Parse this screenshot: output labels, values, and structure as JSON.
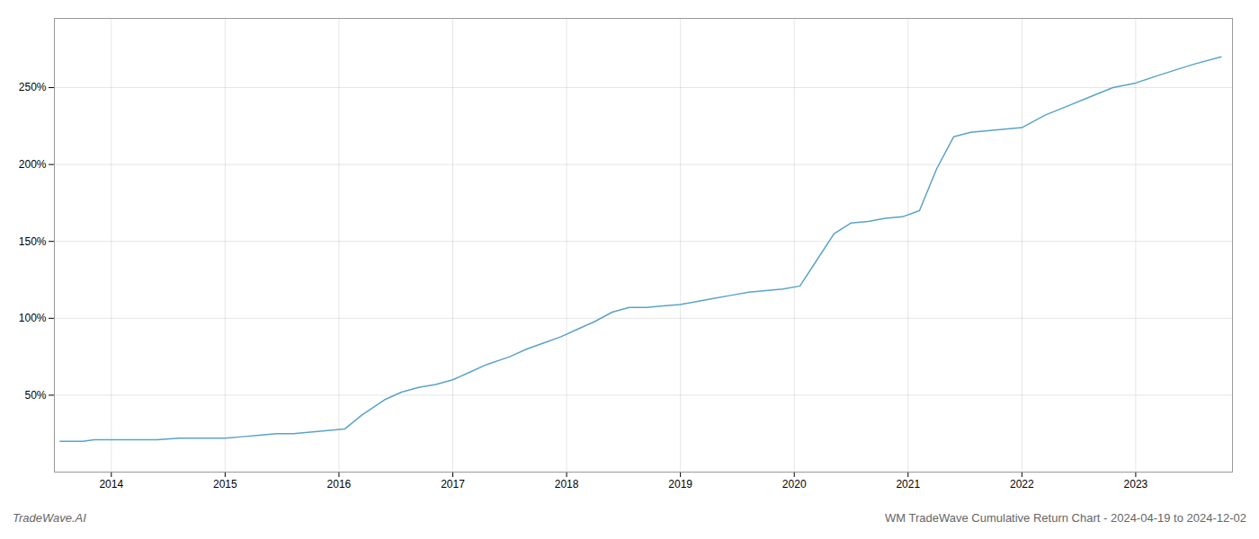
{
  "chart_data": {
    "type": "line",
    "title": "WM TradeWave Cumulative Return Chart - 2024-04-19 to 2024-12-02",
    "annotations": [
      "TradeWave.AI"
    ],
    "color": "#5ba3c9",
    "grid": true,
    "x": [
      2013.55,
      2013.65,
      2013.75,
      2013.85,
      2013.95,
      2014.05,
      2014.2,
      2014.4,
      2014.6,
      2014.8,
      2015.0,
      2015.15,
      2015.3,
      2015.45,
      2015.6,
      2015.75,
      2015.9,
      2016.05,
      2016.2,
      2016.4,
      2016.55,
      2016.7,
      2016.85,
      2017.0,
      2017.15,
      2017.3,
      2017.5,
      2017.65,
      2017.8,
      2017.95,
      2018.1,
      2018.25,
      2018.4,
      2018.55,
      2018.7,
      2018.85,
      2019.0,
      2019.15,
      2019.3,
      2019.45,
      2019.6,
      2019.75,
      2019.9,
      2020.05,
      2020.2,
      2020.35,
      2020.5,
      2020.65,
      2020.8,
      2020.95,
      2021.1,
      2021.25,
      2021.4,
      2021.55,
      2021.7,
      2021.85,
      2022.0,
      2022.2,
      2022.4,
      2022.6,
      2022.8,
      2023.0,
      2023.2,
      2023.5,
      2023.75
    ],
    "values": [
      20,
      20,
      20,
      21,
      21,
      21,
      21,
      21,
      22,
      22,
      22,
      23,
      24,
      25,
      25,
      26,
      27,
      28,
      37,
      47,
      52,
      55,
      57,
      60,
      65,
      70,
      75,
      80,
      84,
      88,
      93,
      98,
      104,
      107,
      107,
      108,
      109,
      111,
      113,
      115,
      117,
      118,
      119,
      121,
      138,
      155,
      162,
      163,
      165,
      166,
      170,
      197,
      218,
      221,
      222,
      223,
      224,
      232,
      238,
      244,
      250,
      253,
      258,
      265,
      270
    ],
    "xlim": [
      2013.5,
      2023.85
    ],
    "xticks": [
      2014,
      2015,
      2016,
      2017,
      2018,
      2019,
      2020,
      2021,
      2022,
      2023
    ],
    "ylim": [
      0,
      295
    ],
    "yticks": [
      {
        "value": 50,
        "label": "50%"
      },
      {
        "value": 100,
        "label": "100%"
      },
      {
        "value": 150,
        "label": "150%"
      },
      {
        "value": 200,
        "label": "200%"
      },
      {
        "value": 250,
        "label": "250%"
      }
    ]
  }
}
